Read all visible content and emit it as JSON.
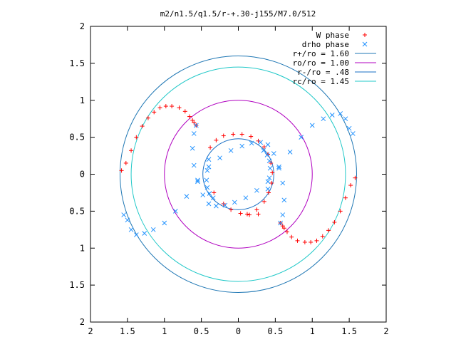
{
  "chart_data": {
    "type": "scatter",
    "title": "m2/n1.5/q1.5/r-+.30-j155/M7.0/512",
    "xlabel": "",
    "ylabel": "",
    "xlim": [
      -2,
      2
    ],
    "ylim": [
      -2,
      2
    ],
    "x_tick_values": [
      -2,
      -1.5,
      -1,
      -0.5,
      0,
      0.5,
      1,
      1.5,
      2
    ],
    "x_tick_labels": [
      "2",
      "1.5",
      "1",
      "0.5",
      "0",
      "0.5",
      "1",
      "1.5",
      "2"
    ],
    "y_tick_values": [
      2,
      1.5,
      1,
      0.5,
      0,
      -0.5,
      -1,
      -1.5,
      -2
    ],
    "y_tick_labels": [
      "2",
      "1.5",
      "1",
      "0.5",
      "0",
      "0.5",
      "1",
      "1.5",
      "2"
    ],
    "grid": false,
    "legend_position": "top-right",
    "colors": {
      "w_phase": "#ff0000",
      "drho_phase": "#1e90ff",
      "r_plus": "#1f77b4",
      "ro": "#b000c0",
      "r_minus": "#1a6fc4",
      "rc": "#20c8c8"
    },
    "series": [
      {
        "name": "W phase",
        "marker": "plus",
        "color": "#ff0000",
        "x": [
          -1.58,
          -1.52,
          -1.45,
          -1.38,
          -1.3,
          -1.22,
          -1.14,
          -1.06,
          -0.98,
          -0.9,
          -0.8,
          -0.72,
          -0.66,
          -0.62,
          -0.6,
          -0.57,
          1.58,
          1.52,
          1.45,
          1.38,
          1.3,
          1.22,
          1.14,
          1.06,
          0.98,
          0.9,
          0.8,
          0.72,
          0.66,
          0.62,
          0.6,
          0.57,
          0.27,
          0.15,
          0.03,
          -0.1,
          -0.2,
          -0.33,
          -0.38,
          -0.3,
          -0.2,
          -0.07,
          0.05,
          0.17,
          0.27,
          0.35,
          0.4,
          0.44,
          0.46,
          0.45,
          0.41,
          0.35,
          0.25,
          0.12
        ],
        "y": [
          0.05,
          0.15,
          0.32,
          0.5,
          0.65,
          0.76,
          0.84,
          0.9,
          0.92,
          0.92,
          0.9,
          0.85,
          0.78,
          0.73,
          0.7,
          0.66,
          -0.05,
          -0.15,
          -0.32,
          -0.5,
          -0.65,
          -0.76,
          -0.84,
          -0.9,
          -0.92,
          -0.92,
          -0.9,
          -0.85,
          -0.78,
          -0.73,
          -0.7,
          -0.66,
          -0.54,
          -0.55,
          -0.53,
          -0.48,
          -0.4,
          -0.25,
          0.36,
          0.46,
          0.52,
          0.54,
          0.54,
          0.51,
          0.45,
          0.37,
          0.27,
          0.15,
          0.02,
          -0.12,
          -0.25,
          -0.37,
          -0.48,
          -0.54
        ]
      },
      {
        "name": "drho phase",
        "marker": "cross",
        "color": "#1e90ff",
        "x": [
          -0.57,
          -0.6,
          -0.62,
          -0.6,
          -0.55,
          -0.48,
          -0.4,
          -0.3,
          -0.18,
          -0.05,
          0.1,
          0.25,
          0.4,
          0.55,
          0.7,
          0.85,
          1.0,
          1.15,
          1.27,
          1.38,
          1.45,
          1.5,
          1.55,
          0.57,
          0.6,
          0.62,
          0.6,
          0.55,
          0.48,
          0.4,
          0.3,
          0.18,
          0.05,
          -0.1,
          -0.25,
          -0.4,
          -0.55,
          -0.7,
          -0.85,
          -1.0,
          -1.15,
          -1.27,
          -1.38,
          -1.45,
          -1.5,
          -1.55,
          -0.4,
          -0.42,
          -0.43,
          -0.42,
          -0.39,
          -0.34,
          0.4,
          0.42,
          0.43,
          0.42,
          0.39,
          0.34
        ],
        "y": [
          0.66,
          0.55,
          0.35,
          0.12,
          -0.1,
          -0.28,
          -0.4,
          -0.43,
          -0.42,
          -0.38,
          -0.32,
          -0.22,
          -0.1,
          0.08,
          0.3,
          0.5,
          0.66,
          0.75,
          0.8,
          0.82,
          0.75,
          0.62,
          0.55,
          -0.66,
          -0.55,
          -0.35,
          -0.12,
          0.1,
          0.28,
          0.4,
          0.43,
          0.42,
          0.38,
          0.32,
          0.22,
          0.1,
          -0.08,
          -0.3,
          -0.5,
          -0.66,
          -0.75,
          -0.8,
          -0.82,
          -0.75,
          -0.62,
          -0.55,
          0.2,
          0.05,
          -0.08,
          -0.18,
          -0.26,
          -0.32,
          -0.2,
          -0.05,
          0.08,
          0.18,
          0.26,
          0.32
        ]
      },
      {
        "name": "r+/ro = 1.60",
        "type": "circle",
        "radius": 1.6,
        "color": "#1f77b4"
      },
      {
        "name": "ro/ro = 1.00",
        "type": "circle",
        "radius": 1.0,
        "color": "#b000c0"
      },
      {
        "name": "r-/ro = .48",
        "type": "circle",
        "radius": 0.48,
        "color": "#1a6fc4"
      },
      {
        "name": "rc/ro = 1.45",
        "type": "circle",
        "radius": 1.45,
        "color": "#20c8c8"
      }
    ]
  }
}
